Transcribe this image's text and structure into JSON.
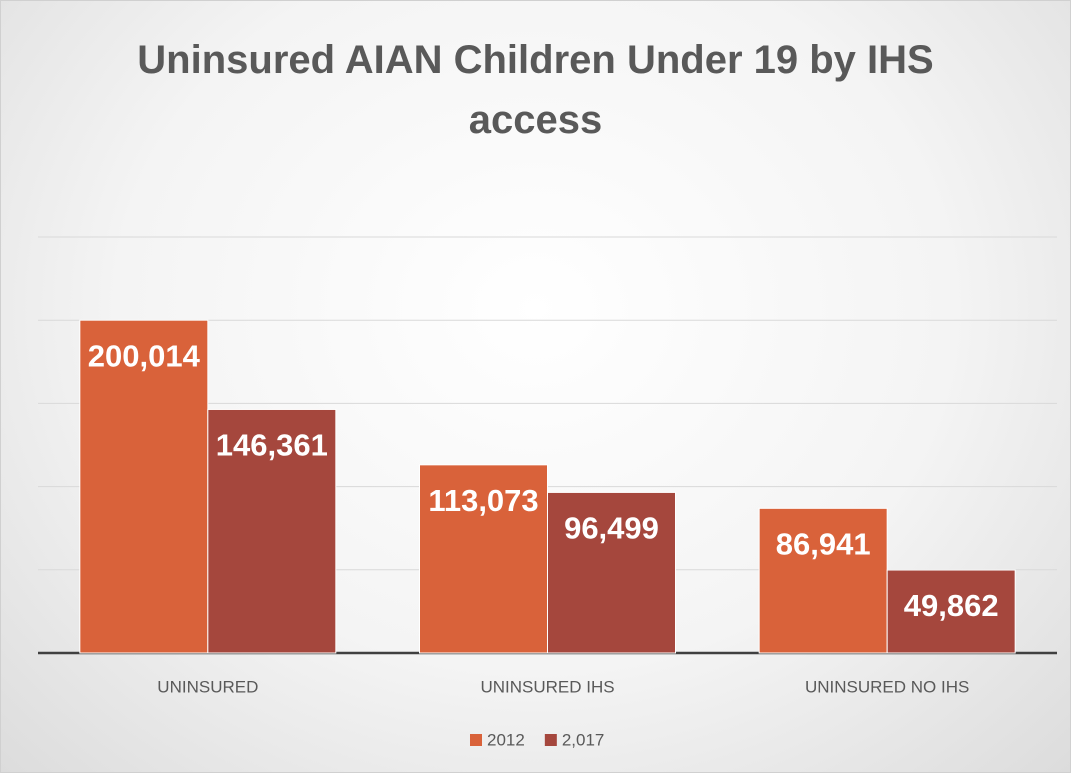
{
  "chart_data": {
    "type": "bar",
    "title": "Uninsured AIAN Children Under 19 by IHS access",
    "categories": [
      "UNINSURED",
      "UNINSURED IHS",
      "UNINSURED NO IHS"
    ],
    "series": [
      {
        "name": "2012",
        "color": "#d9623a",
        "values": [
          200014,
          113073,
          86941
        ],
        "value_labels": [
          "200,014",
          "113,073",
          "86,941"
        ]
      },
      {
        "name": "2,017",
        "color": "#a5473d",
        "values": [
          146361,
          96499,
          49862
        ],
        "value_labels": [
          "146,361",
          "96,499",
          "49,862"
        ]
      }
    ],
    "ylim": [
      0,
      250000
    ],
    "yticks": [
      0,
      50000,
      100000,
      150000,
      200000,
      250000
    ],
    "grid": true,
    "legend": "bottom"
  }
}
